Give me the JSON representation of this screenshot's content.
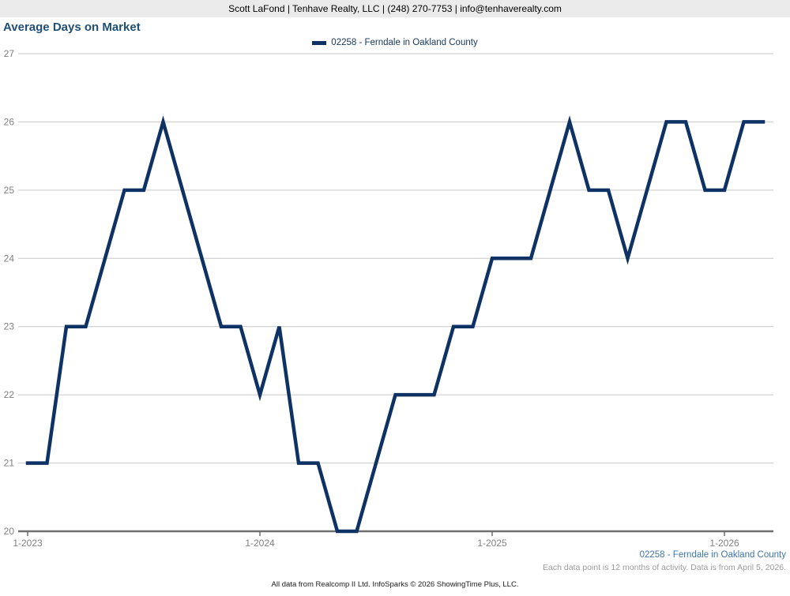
{
  "header": {
    "contact_line": "Scott LaFond | Tenhave Realty, LLC | (248) 270-7753 | info@tenhaverealty.com"
  },
  "title": "Average Days on Market",
  "legend": {
    "label": "02258 - Ferndale in Oakland County"
  },
  "footer": {
    "series_label": "02258 - Ferndale in Oakland County",
    "note": "Each data point is 12 months of activity. Data is from April 5, 2026.",
    "attribution": "All data from Realcomp II Ltd. InfoSparks © 2026 ShowingTime Plus, LLC."
  },
  "colors": {
    "line": "#0e3263",
    "grid": "#c6c6c6",
    "axis": "#6e6e6e",
    "tick_label": "#808080",
    "title": "#1f4e79",
    "legend_text": "#17365d",
    "footer_blue": "#3f75ad",
    "footer_gray": "#9b9b9b",
    "header_bg": "#ebebeb"
  },
  "chart_data": {
    "type": "line",
    "title": "Average Days on Market",
    "ylabel": "",
    "xlabel": "",
    "ylim": [
      20,
      27
    ],
    "yticks": [
      20,
      21,
      22,
      23,
      24,
      25,
      26,
      27
    ],
    "xticks": [
      "1-2023",
      "1-2024",
      "1-2025",
      "1-2026"
    ],
    "grid": true,
    "legend_position": "top-center",
    "categories": [
      "1-2023",
      "2-2023",
      "3-2023",
      "4-2023",
      "5-2023",
      "6-2023",
      "7-2023",
      "8-2023",
      "9-2023",
      "10-2023",
      "11-2023",
      "12-2023",
      "1-2024",
      "2-2024",
      "3-2024",
      "4-2024",
      "5-2024",
      "6-2024",
      "7-2024",
      "8-2024",
      "9-2024",
      "10-2024",
      "11-2024",
      "12-2024",
      "1-2025",
      "2-2025",
      "3-2025",
      "4-2025",
      "5-2025",
      "6-2025",
      "7-2025",
      "8-2025",
      "9-2025",
      "10-2025",
      "11-2025",
      "12-2025",
      "1-2026",
      "2-2026",
      "3-2026"
    ],
    "series": [
      {
        "name": "02258 - Ferndale in Oakland County",
        "color": "#0e3263",
        "values": [
          21,
          21,
          23,
          23,
          24,
          25,
          25,
          26,
          25,
          24,
          23,
          23,
          22,
          23,
          21,
          21,
          20,
          20,
          21,
          22,
          22,
          22,
          23,
          23,
          24,
          24,
          24,
          25,
          26,
          25,
          25,
          24,
          25,
          26,
          26,
          25,
          25,
          26,
          26
        ]
      }
    ]
  }
}
